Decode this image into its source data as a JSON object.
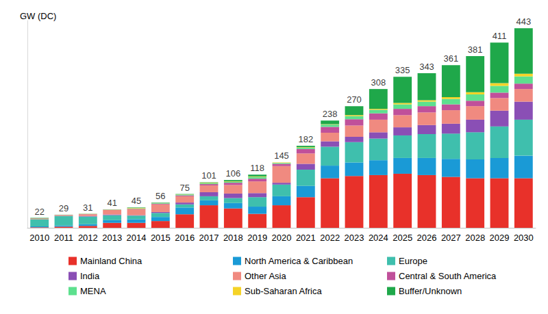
{
  "chart_data": {
    "type": "bar",
    "y_label": "GW (DC)",
    "stacked": true,
    "tick_labels": "x",
    "grid": false,
    "legend": "bottom",
    "categories": [
      "2010",
      "2011",
      "2012",
      "2013",
      "2014",
      "2015",
      "2016",
      "2017",
      "2018",
      "2019",
      "2020",
      "2021",
      "2022",
      "2023",
      "2024",
      "2025",
      "2026",
      "2027",
      "2028",
      "2029",
      "2030"
    ],
    "ylim": [
      0,
      460
    ],
    "totals": [
      22,
      29,
      31,
      41,
      45,
      56,
      75,
      101,
      106,
      118,
      145,
      182,
      238,
      270,
      308,
      335,
      343,
      361,
      381,
      411,
      443
    ],
    "series": [
      {
        "name": "Mainland China",
        "color": "#e8312a",
        "values": [
          1,
          2.5,
          4,
          11,
          11,
          15,
          30,
          50,
          43,
          31,
          50,
          68,
          110,
          115,
          117,
          120,
          117,
          113,
          110,
          110,
          110
        ]
      },
      {
        "name": "North America & Caribbean",
        "color": "#1a9ad6",
        "values": [
          2,
          2.5,
          4,
          6,
          8,
          9,
          15,
          11,
          12,
          16,
          20,
          25,
          28,
          30,
          33,
          35,
          38,
          40,
          42,
          45,
          50
        ]
      },
      {
        "name": "Europe",
        "color": "#3fbfad",
        "values": [
          16,
          21,
          17,
          11,
          8,
          9,
          7,
          9,
          11,
          21,
          26,
          36,
          42,
          45,
          48,
          50,
          53,
          56,
          60,
          70,
          80
        ]
      },
      {
        "name": "India",
        "color": "#8a4fb5",
        "values": [
          0,
          0.5,
          1,
          1.5,
          1,
          2,
          4,
          9,
          10,
          9,
          4,
          13,
          12,
          12,
          14,
          18,
          20,
          22,
          28,
          35,
          40
        ]
      },
      {
        "name": "Other Asia",
        "color": "#f08a80",
        "values": [
          2,
          2,
          4,
          10,
          13,
          17,
          14,
          15,
          19,
          26,
          37,
          23,
          19,
          25,
          28,
          27,
          28,
          30,
          30,
          28,
          28
        ]
      },
      {
        "name": "Central & South America",
        "color": "#c0509a",
        "values": [
          0,
          0,
          0.2,
          0.5,
          1,
          1.5,
          2,
          3,
          5,
          6,
          5,
          10,
          13,
          14,
          14,
          14,
          14,
          13,
          12,
          12,
          12
        ]
      },
      {
        "name": "MENA",
        "color": "#5de08e",
        "values": [
          0,
          0,
          0.3,
          0.5,
          1,
          1,
          1.5,
          2,
          2,
          4,
          2,
          3,
          5,
          7,
          8,
          10,
          10,
          12,
          14,
          15,
          16
        ]
      },
      {
        "name": "Sub-Saharan Africa",
        "color": "#f5d327",
        "values": [
          0,
          0,
          0.2,
          0.3,
          1,
          0.5,
          0.5,
          1,
          1,
          1,
          1,
          1,
          1,
          2,
          2,
          3,
          3,
          4,
          5,
          6,
          6
        ]
      },
      {
        "name": "Buffer/Unknown",
        "color": "#1fa84a",
        "values": [
          1,
          0.5,
          0.3,
          0.2,
          1,
          1,
          1,
          1,
          3,
          4,
          0,
          3,
          8,
          20,
          44,
          58,
          60,
          71,
          80,
          90,
          101
        ]
      }
    ]
  }
}
